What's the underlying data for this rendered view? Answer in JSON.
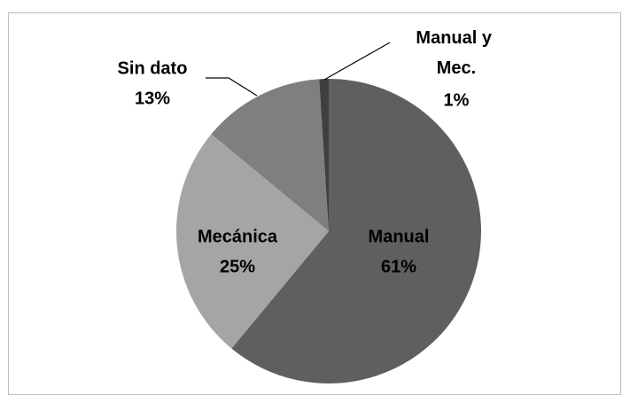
{
  "chart_data": {
    "type": "pie",
    "categories": [
      "Manual",
      "Mecánica",
      "Sin dato",
      "Manual y Mec."
    ],
    "values": [
      61,
      25,
      13,
      1
    ],
    "value_labels": [
      "61%",
      "25%",
      "13%",
      "1%"
    ],
    "colors": [
      "#5f5f5f",
      "#a5a5a5",
      "#7f7f7f",
      "#3f3f3f"
    ]
  }
}
